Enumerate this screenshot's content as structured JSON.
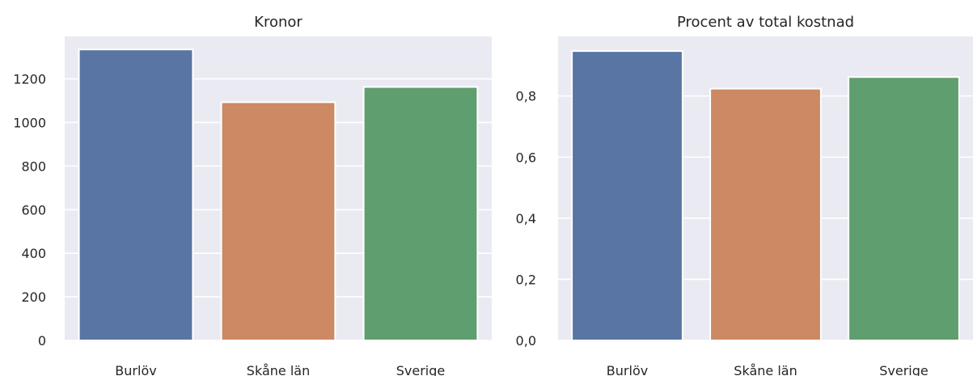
{
  "chart_data": [
    {
      "type": "bar",
      "title": "Kronor",
      "categories": [
        "Burlöv",
        "Skåne län",
        "Sverige"
      ],
      "values": [
        1335,
        1093,
        1163
      ],
      "colors": [
        "#5975a4",
        "#cc8963",
        "#5f9e6e"
      ],
      "ylim": [
        0,
        1395
      ],
      "yticks": [
        0,
        200,
        400,
        600,
        800,
        1000,
        1200
      ],
      "ytick_labels": [
        "0",
        "200",
        "400",
        "600",
        "800",
        "1000",
        "1200"
      ],
      "grid": true,
      "background": "#eaeaf2"
    },
    {
      "type": "bar",
      "title": "Procent av total kostnad",
      "categories": [
        "Burlöv",
        "Skåne län",
        "Sverige"
      ],
      "values": [
        0.947,
        0.824,
        0.862
      ],
      "colors": [
        "#5975a4",
        "#cc8963",
        "#5f9e6e"
      ],
      "ylim": [
        0,
        0.995
      ],
      "yticks": [
        0,
        0.2,
        0.4,
        0.6,
        0.8
      ],
      "ytick_labels": [
        "0,0",
        "0,2",
        "0,4",
        "0,6",
        "0,8"
      ],
      "grid": true,
      "background": "#eaeaf2"
    }
  ]
}
